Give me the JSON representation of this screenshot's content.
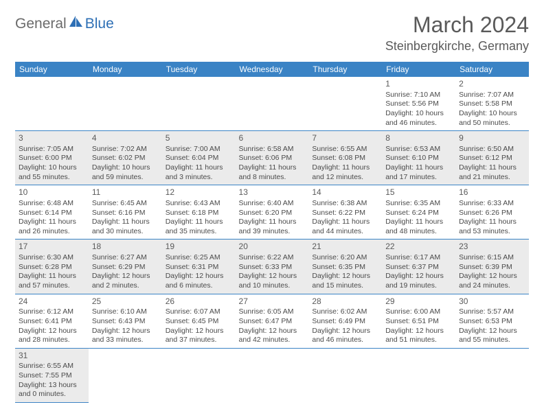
{
  "logo": {
    "part1": "General",
    "part2": "Blue"
  },
  "title": "March 2024",
  "location": "Steinbergkirche, Germany",
  "colors": {
    "header_bg": "#3a83c5",
    "border": "#3a83c5",
    "shaded": "#ebebeb",
    "logo_blue": "#2d6fb5"
  },
  "weekdays": [
    "Sunday",
    "Monday",
    "Tuesday",
    "Wednesday",
    "Thursday",
    "Friday",
    "Saturday"
  ],
  "weeks": [
    [
      null,
      null,
      null,
      null,
      null,
      {
        "day": "1",
        "sunrise": "Sunrise: 7:10 AM",
        "sunset": "Sunset: 5:56 PM",
        "daylight1": "Daylight: 10 hours",
        "daylight2": "and 46 minutes."
      },
      {
        "day": "2",
        "sunrise": "Sunrise: 7:07 AM",
        "sunset": "Sunset: 5:58 PM",
        "daylight1": "Daylight: 10 hours",
        "daylight2": "and 50 minutes."
      }
    ],
    [
      {
        "day": "3",
        "sunrise": "Sunrise: 7:05 AM",
        "sunset": "Sunset: 6:00 PM",
        "daylight1": "Daylight: 10 hours",
        "daylight2": "and 55 minutes.",
        "shaded": true
      },
      {
        "day": "4",
        "sunrise": "Sunrise: 7:02 AM",
        "sunset": "Sunset: 6:02 PM",
        "daylight1": "Daylight: 10 hours",
        "daylight2": "and 59 minutes.",
        "shaded": true
      },
      {
        "day": "5",
        "sunrise": "Sunrise: 7:00 AM",
        "sunset": "Sunset: 6:04 PM",
        "daylight1": "Daylight: 11 hours",
        "daylight2": "and 3 minutes.",
        "shaded": true
      },
      {
        "day": "6",
        "sunrise": "Sunrise: 6:58 AM",
        "sunset": "Sunset: 6:06 PM",
        "daylight1": "Daylight: 11 hours",
        "daylight2": "and 8 minutes.",
        "shaded": true
      },
      {
        "day": "7",
        "sunrise": "Sunrise: 6:55 AM",
        "sunset": "Sunset: 6:08 PM",
        "daylight1": "Daylight: 11 hours",
        "daylight2": "and 12 minutes.",
        "shaded": true
      },
      {
        "day": "8",
        "sunrise": "Sunrise: 6:53 AM",
        "sunset": "Sunset: 6:10 PM",
        "daylight1": "Daylight: 11 hours",
        "daylight2": "and 17 minutes.",
        "shaded": true
      },
      {
        "day": "9",
        "sunrise": "Sunrise: 6:50 AM",
        "sunset": "Sunset: 6:12 PM",
        "daylight1": "Daylight: 11 hours",
        "daylight2": "and 21 minutes.",
        "shaded": true
      }
    ],
    [
      {
        "day": "10",
        "sunrise": "Sunrise: 6:48 AM",
        "sunset": "Sunset: 6:14 PM",
        "daylight1": "Daylight: 11 hours",
        "daylight2": "and 26 minutes."
      },
      {
        "day": "11",
        "sunrise": "Sunrise: 6:45 AM",
        "sunset": "Sunset: 6:16 PM",
        "daylight1": "Daylight: 11 hours",
        "daylight2": "and 30 minutes."
      },
      {
        "day": "12",
        "sunrise": "Sunrise: 6:43 AM",
        "sunset": "Sunset: 6:18 PM",
        "daylight1": "Daylight: 11 hours",
        "daylight2": "and 35 minutes."
      },
      {
        "day": "13",
        "sunrise": "Sunrise: 6:40 AM",
        "sunset": "Sunset: 6:20 PM",
        "daylight1": "Daylight: 11 hours",
        "daylight2": "and 39 minutes."
      },
      {
        "day": "14",
        "sunrise": "Sunrise: 6:38 AM",
        "sunset": "Sunset: 6:22 PM",
        "daylight1": "Daylight: 11 hours",
        "daylight2": "and 44 minutes."
      },
      {
        "day": "15",
        "sunrise": "Sunrise: 6:35 AM",
        "sunset": "Sunset: 6:24 PM",
        "daylight1": "Daylight: 11 hours",
        "daylight2": "and 48 minutes."
      },
      {
        "day": "16",
        "sunrise": "Sunrise: 6:33 AM",
        "sunset": "Sunset: 6:26 PM",
        "daylight1": "Daylight: 11 hours",
        "daylight2": "and 53 minutes."
      }
    ],
    [
      {
        "day": "17",
        "sunrise": "Sunrise: 6:30 AM",
        "sunset": "Sunset: 6:28 PM",
        "daylight1": "Daylight: 11 hours",
        "daylight2": "and 57 minutes.",
        "shaded": true
      },
      {
        "day": "18",
        "sunrise": "Sunrise: 6:27 AM",
        "sunset": "Sunset: 6:29 PM",
        "daylight1": "Daylight: 12 hours",
        "daylight2": "and 2 minutes.",
        "shaded": true
      },
      {
        "day": "19",
        "sunrise": "Sunrise: 6:25 AM",
        "sunset": "Sunset: 6:31 PM",
        "daylight1": "Daylight: 12 hours",
        "daylight2": "and 6 minutes.",
        "shaded": true
      },
      {
        "day": "20",
        "sunrise": "Sunrise: 6:22 AM",
        "sunset": "Sunset: 6:33 PM",
        "daylight1": "Daylight: 12 hours",
        "daylight2": "and 10 minutes.",
        "shaded": true
      },
      {
        "day": "21",
        "sunrise": "Sunrise: 6:20 AM",
        "sunset": "Sunset: 6:35 PM",
        "daylight1": "Daylight: 12 hours",
        "daylight2": "and 15 minutes.",
        "shaded": true
      },
      {
        "day": "22",
        "sunrise": "Sunrise: 6:17 AM",
        "sunset": "Sunset: 6:37 PM",
        "daylight1": "Daylight: 12 hours",
        "daylight2": "and 19 minutes.",
        "shaded": true
      },
      {
        "day": "23",
        "sunrise": "Sunrise: 6:15 AM",
        "sunset": "Sunset: 6:39 PM",
        "daylight1": "Daylight: 12 hours",
        "daylight2": "and 24 minutes.",
        "shaded": true
      }
    ],
    [
      {
        "day": "24",
        "sunrise": "Sunrise: 6:12 AM",
        "sunset": "Sunset: 6:41 PM",
        "daylight1": "Daylight: 12 hours",
        "daylight2": "and 28 minutes."
      },
      {
        "day": "25",
        "sunrise": "Sunrise: 6:10 AM",
        "sunset": "Sunset: 6:43 PM",
        "daylight1": "Daylight: 12 hours",
        "daylight2": "and 33 minutes."
      },
      {
        "day": "26",
        "sunrise": "Sunrise: 6:07 AM",
        "sunset": "Sunset: 6:45 PM",
        "daylight1": "Daylight: 12 hours",
        "daylight2": "and 37 minutes."
      },
      {
        "day": "27",
        "sunrise": "Sunrise: 6:05 AM",
        "sunset": "Sunset: 6:47 PM",
        "daylight1": "Daylight: 12 hours",
        "daylight2": "and 42 minutes."
      },
      {
        "day": "28",
        "sunrise": "Sunrise: 6:02 AM",
        "sunset": "Sunset: 6:49 PM",
        "daylight1": "Daylight: 12 hours",
        "daylight2": "and 46 minutes."
      },
      {
        "day": "29",
        "sunrise": "Sunrise: 6:00 AM",
        "sunset": "Sunset: 6:51 PM",
        "daylight1": "Daylight: 12 hours",
        "daylight2": "and 51 minutes."
      },
      {
        "day": "30",
        "sunrise": "Sunrise: 5:57 AM",
        "sunset": "Sunset: 6:53 PM",
        "daylight1": "Daylight: 12 hours",
        "daylight2": "and 55 minutes."
      }
    ],
    [
      {
        "day": "31",
        "sunrise": "Sunrise: 6:55 AM",
        "sunset": "Sunset: 7:55 PM",
        "daylight1": "Daylight: 13 hours",
        "daylight2": "and 0 minutes.",
        "shaded": true
      },
      null,
      null,
      null,
      null,
      null,
      null
    ]
  ]
}
